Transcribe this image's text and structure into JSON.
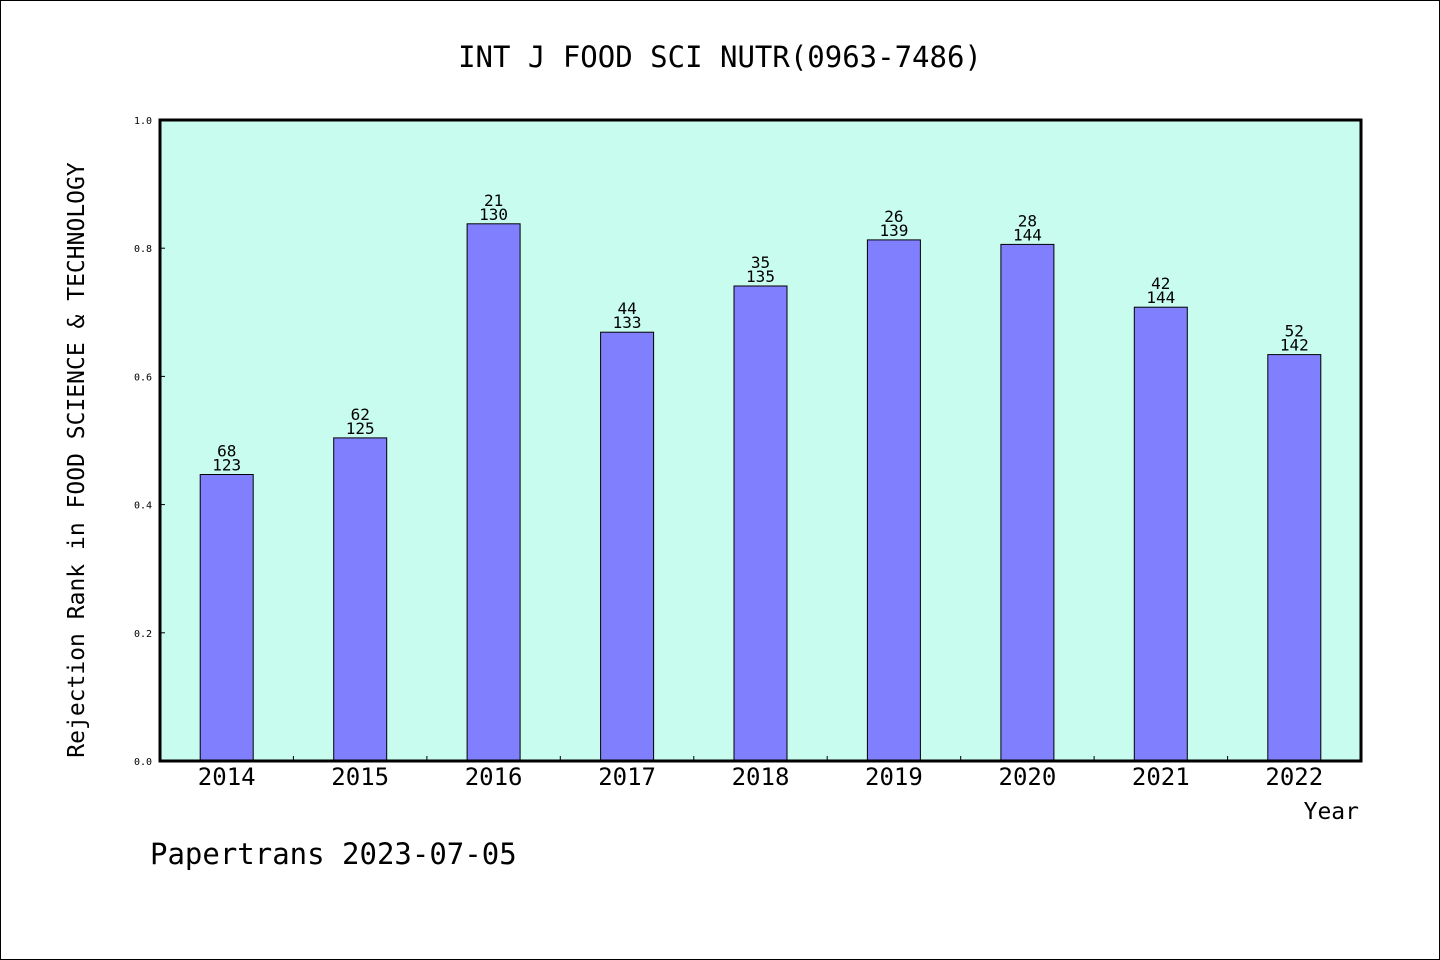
{
  "chart_data": {
    "type": "bar",
    "title": "INT J FOOD SCI NUTR(0963-7486)",
    "xlabel": "Year",
    "ylabel": "Rejection Rank in FOOD SCIENCE & TECHNOLOGY",
    "categories": [
      "2014",
      "2015",
      "2016",
      "2017",
      "2018",
      "2019",
      "2020",
      "2021",
      "2022"
    ],
    "values": [
      0.447,
      0.504,
      0.838,
      0.669,
      0.741,
      0.813,
      0.806,
      0.708,
      0.634
    ],
    "label_top": [
      "68",
      "62",
      "21",
      "44",
      "35",
      "26",
      "28",
      "42",
      "52"
    ],
    "label_bottom": [
      "123",
      "125",
      "130",
      "133",
      "135",
      "139",
      "144",
      "144",
      "142"
    ],
    "ylim": [
      0,
      1.0
    ],
    "yticks": [
      "0.0",
      "0.2",
      "0.4",
      "0.6",
      "0.8",
      "1.0"
    ],
    "grid": false,
    "colors": {
      "plot_background": "#c8fcee",
      "bar_fill": "#8080ff",
      "bar_stroke": "#000000"
    }
  },
  "footer": "Papertrans 2023-07-05"
}
